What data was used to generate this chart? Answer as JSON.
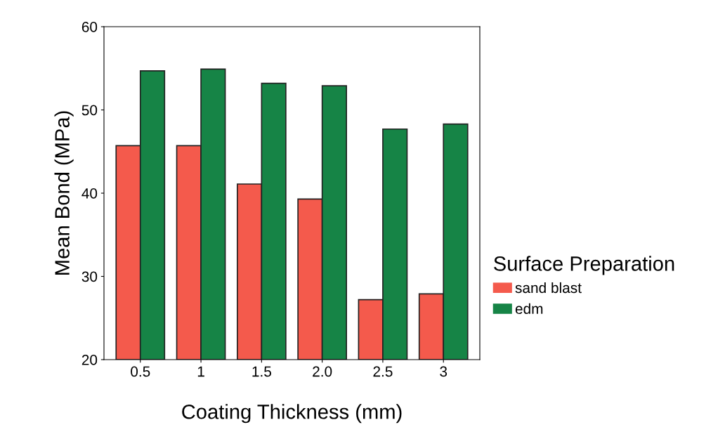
{
  "chart_data": {
    "type": "bar",
    "xlabel": "Coating Thickness (mm)",
    "ylabel": "Mean Bond (MPa)",
    "legend_title": "Surface Preparation",
    "categories": [
      "0.5",
      "1",
      "1.5",
      "2.0",
      "2.5",
      "3"
    ],
    "series": [
      {
        "name": "sand blast",
        "color": "#f45a4c",
        "values": [
          45.7,
          45.7,
          41.1,
          39.3,
          27.2,
          27.9
        ]
      },
      {
        "name": "edm",
        "color": "#168446",
        "values": [
          54.7,
          54.9,
          53.2,
          52.9,
          47.7,
          48.3
        ]
      }
    ],
    "ylim": [
      20,
      60
    ],
    "yticks": [
      20,
      30,
      40,
      50,
      60
    ],
    "grid": false,
    "legend": "right"
  }
}
